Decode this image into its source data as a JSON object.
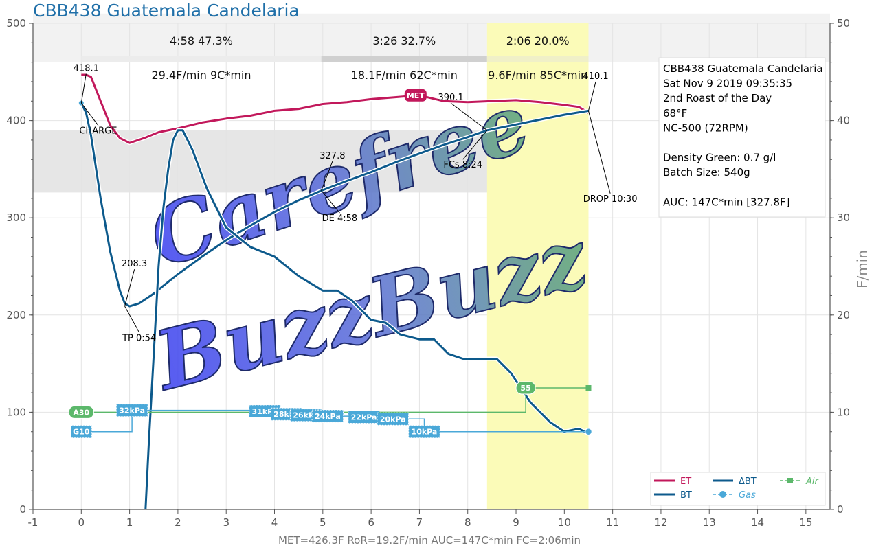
{
  "title": "CBB438 Guatemala Candelaria",
  "footer": "MET=426.3F   RoR=19.2F/min   AUC=147C*min   FC=2:06min",
  "right_axis_label": "F/min",
  "phases": [
    {
      "time": "4:58",
      "pct": "47.3%",
      "rate": "29.4F/min  9C*min",
      "x0": 0,
      "x1": 4.97
    },
    {
      "time": "3:26",
      "pct": "32.7%",
      "rate": "18.1F/min  62C*min",
      "x0": 4.97,
      "x1": 8.4
    },
    {
      "time": "2:06",
      "pct": "20.0%",
      "rate": "9.6F/min  85C*min",
      "x0": 8.4,
      "x1": 10.5
    }
  ],
  "info_box": [
    "CBB438 Guatemala Candelaria",
    "Sat Nov 9 2019 09:35:35",
    "2nd Roast of the Day",
    "68°F",
    "NC-500 (72RPM)",
    "",
    "Density Green: 0.7 g/l",
    "Batch Size: 540g",
    "",
    "AUC: 147C*min [327.8F]"
  ],
  "watermark": [
    "Carefree",
    "BuzzBuzz"
  ],
  "annotations": {
    "charge_value": "418.1",
    "charge_label": "CHARGE",
    "tp_value": "208.3",
    "tp_label": "TP 0:54",
    "de_value": "327.8",
    "de_label": "DE 4:58",
    "fc_value": "390.1",
    "fc_label": "FCs 8:24",
    "drop_value": "410.1",
    "drop_label": "DROP 10:30",
    "met_label": "MET"
  },
  "legend": [
    {
      "label": "ET",
      "color": "#c2185b",
      "style": "line"
    },
    {
      "label": "BT",
      "color": "#0d5a8c",
      "style": "line"
    },
    {
      "label": "ΔBT",
      "color": "#0d5a8c",
      "style": "line"
    },
    {
      "label": "Gas",
      "color": "#4aa8d8",
      "style": "marker"
    },
    {
      "label": "Air",
      "color": "#5cb86b",
      "style": "dashmarker"
    }
  ],
  "event_labels": {
    "air": [
      {
        "t": 0,
        "label": "A30",
        "v": 100
      },
      {
        "t": 9.2,
        "label": "55",
        "v": 125
      }
    ],
    "gas": [
      {
        "t": 0,
        "label": "G10",
        "v": 80
      },
      {
        "t": 1.05,
        "label": "32kPa",
        "v": 102
      },
      {
        "t": 3.8,
        "label": "31kPa",
        "v": 101
      },
      {
        "t": 4.25,
        "label": "28kPa",
        "v": 98
      },
      {
        "t": 4.65,
        "label": "26kPa",
        "v": 97
      },
      {
        "t": 5.1,
        "label": "24kPa",
        "v": 96
      },
      {
        "t": 5.85,
        "label": "22kPa",
        "v": 95
      },
      {
        "t": 6.45,
        "label": "20kPa",
        "v": 93
      },
      {
        "t": 7.1,
        "label": "10kPa",
        "v": 80
      }
    ]
  },
  "chart_data": {
    "type": "line",
    "xlim": [
      -1,
      15.5
    ],
    "ylim": [
      0,
      500
    ],
    "y2lim": [
      0,
      50
    ],
    "x_ticks": [
      -1,
      0,
      1,
      2,
      3,
      4,
      5,
      6,
      7,
      8,
      9,
      10,
      11,
      12,
      13,
      14,
      15
    ],
    "y_ticks": [
      0,
      100,
      200,
      300,
      400,
      500
    ],
    "y2_ticks": [
      0,
      10,
      20,
      30,
      40,
      50
    ],
    "y2label": "F/min",
    "highlight_band": [
      8.4,
      10.5
    ],
    "series": [
      {
        "name": "ET",
        "axis": "left",
        "color": "#c2185b",
        "x": [
          0,
          0.1,
          0.2,
          0.4,
          0.6,
          0.8,
          1.0,
          1.3,
          1.6,
          2.0,
          2.5,
          3.0,
          3.5,
          4.0,
          4.5,
          5.0,
          5.5,
          6.0,
          6.5,
          7.0,
          7.5,
          8.0,
          8.5,
          9.0,
          9.5,
          10.0,
          10.3,
          10.5
        ],
        "y": [
          447,
          447,
          445,
          420,
          395,
          382,
          377,
          382,
          388,
          392,
          398,
          402,
          405,
          410,
          412,
          417,
          419,
          422,
          424,
          426,
          420,
          419,
          420,
          421,
          419,
          416,
          414,
          408
        ]
      },
      {
        "name": "BT",
        "axis": "left",
        "color": "#0d5a8c",
        "x": [
          0,
          0.1,
          0.2,
          0.4,
          0.6,
          0.8,
          0.9,
          1.0,
          1.2,
          1.5,
          2.0,
          2.5,
          3.0,
          3.5,
          4.0,
          4.5,
          4.97,
          5.5,
          6.0,
          6.5,
          7.0,
          7.5,
          8.0,
          8.4,
          9.0,
          9.5,
          10.0,
          10.5
        ],
        "y": [
          418,
          408,
          385,
          320,
          265,
          225,
          212,
          209,
          212,
          222,
          242,
          260,
          277,
          292,
          306,
          318,
          328,
          338,
          347,
          357,
          366,
          375,
          383,
          390,
          396,
          401,
          406,
          410
        ]
      },
      {
        "name": "ΔBT",
        "axis": "right",
        "color": "#0d5a8c",
        "x": [
          1.33,
          1.4,
          1.5,
          1.6,
          1.7,
          1.8,
          1.9,
          2.0,
          2.1,
          2.3,
          2.6,
          3.0,
          3.5,
          4.0,
          4.5,
          5.0,
          5.3,
          5.6,
          6.0,
          6.3,
          6.6,
          7.0,
          7.3,
          7.6,
          7.9,
          8.3,
          8.6,
          8.9,
          9.3,
          9.7,
          10.0,
          10.3,
          10.5
        ],
        "y": [
          0,
          7,
          16,
          25,
          31,
          35,
          38,
          39,
          39,
          37,
          33,
          29,
          27,
          26,
          24,
          22.5,
          22.5,
          21.5,
          19.5,
          19.2,
          18,
          17.5,
          17.5,
          16,
          15.5,
          15.5,
          15.5,
          14,
          11,
          9,
          8,
          8.3,
          7.8
        ]
      },
      {
        "name": "Gas",
        "axis": "left",
        "color": "#4aa8d8",
        "x": [
          0,
          1.05,
          3.8,
          10.5
        ],
        "y": [
          80,
          100,
          100,
          80
        ]
      },
      {
        "name": "Air",
        "axis": "left",
        "color": "#5cb86b",
        "x": [
          0,
          9.2,
          10.5
        ],
        "y": [
          100,
          100,
          125
        ]
      }
    ]
  }
}
